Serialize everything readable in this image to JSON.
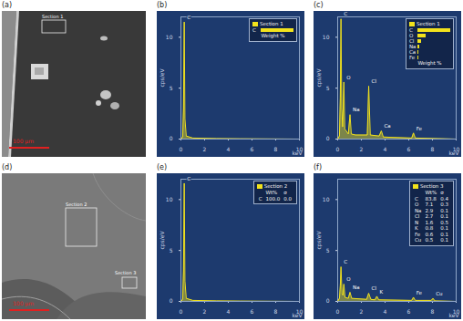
{
  "images": [
    {
      "panel": "(a)",
      "scale_bar": "100 µm",
      "sections": [
        "Section 1"
      ]
    },
    {
      "panel": "(d)",
      "scale_bar": "100 µm",
      "sections": [
        "Section 2",
        "Section 3"
      ]
    }
  ],
  "chart_data": [
    {
      "type": "line",
      "title": "(b)",
      "x_label": "keV",
      "y_label": "cps/eV",
      "xlim": [
        0,
        10
      ],
      "xticks": [
        0,
        2,
        4,
        6,
        8,
        10
      ],
      "ylim": [
        0,
        12
      ],
      "yticks": [
        0,
        5,
        10
      ],
      "legend": "top-right",
      "x": [
        0,
        0.15,
        0.22,
        0.28,
        0.34,
        0.45,
        1,
        3,
        5,
        10
      ],
      "series": [
        {
          "name": "Section 1",
          "color": "#f2e21c",
          "values": [
            0,
            0.2,
            3,
            11.5,
            2,
            0.3,
            0.1,
            0.05,
            0.03,
            0
          ]
        }
      ],
      "annotations": [
        {
          "text": "C",
          "x": 0.28,
          "y": 11.5
        }
      ],
      "composition": {
        "label": "Weight %",
        "elements": [
          "C"
        ],
        "values": [
          100
        ]
      }
    },
    {
      "type": "line",
      "title": "(c)",
      "x_label": "keV",
      "y_label": "cps/eV",
      "xlim": [
        0,
        10
      ],
      "xticks": [
        0,
        2,
        4,
        6,
        8,
        10
      ],
      "ylim": [
        0,
        12
      ],
      "yticks": [
        0,
        5,
        10
      ],
      "legend": "top-right",
      "x": [
        0,
        0.15,
        0.22,
        0.28,
        0.34,
        0.42,
        0.52,
        0.6,
        0.9,
        1.04,
        1.15,
        1.5,
        2.5,
        2.62,
        2.75,
        3.5,
        3.69,
        3.85,
        6.25,
        6.4,
        6.55,
        10
      ],
      "series": [
        {
          "name": "Section 1",
          "color": "#f2e21c",
          "values": [
            0,
            0.3,
            4,
            11.8,
            3,
            1.2,
            5.6,
            1.0,
            0.5,
            2.4,
            0.5,
            0.4,
            0.4,
            5.2,
            0.4,
            0.3,
            0.8,
            0.2,
            0.1,
            0.6,
            0.1,
            0
          ]
        }
      ],
      "annotations": [
        {
          "text": "C",
          "x": 0.28,
          "y": 11.8
        },
        {
          "text": "O",
          "x": 0.52,
          "y": 5.6
        },
        {
          "text": "Na",
          "x": 1.04,
          "y": 2.4
        },
        {
          "text": "Cl",
          "x": 2.62,
          "y": 5.2
        },
        {
          "text": "Ca",
          "x": 3.69,
          "y": 0.8
        },
        {
          "text": "Fe",
          "x": 6.4,
          "y": 0.6
        }
      ],
      "composition": {
        "label": "Weight %",
        "elements": [
          "C",
          "O",
          "Cl",
          "Na",
          "Ca",
          "Fe"
        ],
        "values": [
          68.4,
          17.2,
          7.9,
          4.1,
          1.6,
          0.8
        ]
      }
    },
    {
      "type": "line",
      "title": "(e)",
      "x_label": "keV",
      "y_label": "cps/eV",
      "xlim": [
        0,
        10
      ],
      "xticks": [
        0,
        2,
        4,
        6,
        8,
        10
      ],
      "ylim": [
        0,
        12
      ],
      "yticks": [
        0,
        5,
        10
      ],
      "legend": "top-right",
      "x": [
        0,
        0.15,
        0.22,
        0.28,
        0.34,
        0.45,
        1,
        3,
        5,
        10
      ],
      "series": [
        {
          "name": "Section 2",
          "color": "#f2e21c",
          "values": [
            0,
            0.2,
            3,
            11.6,
            2,
            0.3,
            0.1,
            0.05,
            0.03,
            0
          ]
        }
      ],
      "annotations": [
        {
          "text": "C",
          "x": 0.28,
          "y": 11.6
        }
      ],
      "table": {
        "columns": [
          "Wt%",
          "σ"
        ],
        "rows": [
          [
            "C",
            "100.0",
            "0.0"
          ]
        ]
      }
    },
    {
      "type": "line",
      "title": "(f)",
      "x_label": "keV",
      "y_label": "cps/eV",
      "xlim": [
        0,
        10
      ],
      "xticks": [
        0,
        2,
        4,
        6,
        8,
        10
      ],
      "ylim": [
        0,
        12
      ],
      "yticks": [
        0,
        5,
        10
      ],
      "legend": "top-right",
      "x": [
        0,
        0.15,
        0.22,
        0.28,
        0.36,
        0.45,
        0.52,
        0.62,
        0.9,
        1.04,
        1.18,
        2.45,
        2.62,
        2.8,
        3.15,
        3.31,
        3.47,
        6.25,
        6.4,
        6.55,
        7.9,
        8.05,
        8.2,
        10
      ],
      "series": [
        {
          "name": "Section 3",
          "color": "#f2e21c",
          "values": [
            0,
            0.3,
            1.5,
            3.4,
            0.8,
            0.6,
            1.7,
            0.4,
            0.3,
            0.9,
            0.3,
            0.2,
            0.8,
            0.2,
            0.15,
            0.5,
            0.15,
            0.1,
            0.4,
            0.1,
            0.1,
            0.3,
            0.05,
            0
          ]
        }
      ],
      "annotations": [
        {
          "text": "C",
          "x": 0.28,
          "y": 3.4
        },
        {
          "text": "O",
          "x": 0.52,
          "y": 1.7
        },
        {
          "text": "Na",
          "x": 1.04,
          "y": 0.9
        },
        {
          "text": "Cl",
          "x": 2.62,
          "y": 0.8
        },
        {
          "text": "K",
          "x": 3.31,
          "y": 0.5
        },
        {
          "text": "Fe",
          "x": 6.4,
          "y": 0.4
        },
        {
          "text": "Cu",
          "x": 8.05,
          "y": 0.3
        }
      ],
      "table": {
        "columns": [
          "Wt%",
          "σ"
        ],
        "rows": [
          [
            "C",
            "83.8",
            "0.4"
          ],
          [
            "O",
            "7.1",
            "0.3"
          ],
          [
            "Na",
            "2.9",
            "0.1"
          ],
          [
            "Cl",
            "2.7",
            "0.1"
          ],
          [
            "N",
            "1.6",
            "0.5"
          ],
          [
            "K",
            "0.8",
            "0.1"
          ],
          [
            "Fe",
            "0.6",
            "0.1"
          ],
          [
            "Cu",
            "0.5",
            "0.1"
          ]
        ]
      }
    }
  ]
}
